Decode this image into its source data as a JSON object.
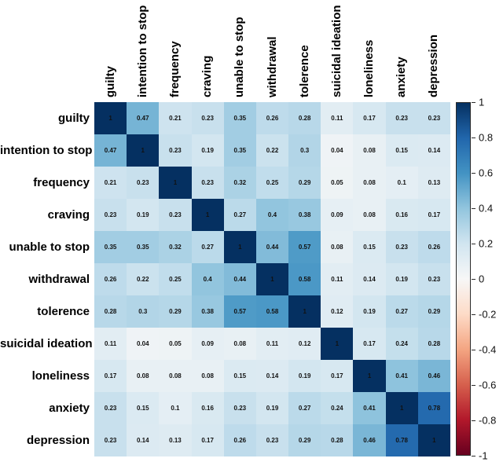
{
  "chart_data": {
    "type": "heatmap",
    "title": "",
    "description": "Correlation matrix heatmap with blue-white-red colorbar",
    "variables": [
      "guilty",
      "intention to stop",
      "frequency",
      "craving",
      "unable to stop",
      "withdrawal",
      "tolerence",
      "suicidal ideation",
      "loneliness",
      "anxiety",
      "depression"
    ],
    "matrix": [
      [
        1,
        0.47,
        0.21,
        0.23,
        0.35,
        0.26,
        0.28,
        0.11,
        0.17,
        0.23,
        0.23
      ],
      [
        0.47,
        1,
        0.23,
        0.19,
        0.35,
        0.22,
        0.3,
        0.04,
        0.08,
        0.15,
        0.14
      ],
      [
        0.21,
        0.23,
        1,
        0.23,
        0.32,
        0.25,
        0.29,
        0.05,
        0.08,
        0.1,
        0.13
      ],
      [
        0.23,
        0.19,
        0.23,
        1,
        0.27,
        0.4,
        0.38,
        0.09,
        0.08,
        0.16,
        0.17
      ],
      [
        0.35,
        0.35,
        0.32,
        0.27,
        1,
        0.44,
        0.57,
        0.08,
        0.15,
        0.23,
        0.26
      ],
      [
        0.26,
        0.22,
        0.25,
        0.4,
        0.44,
        1,
        0.58,
        0.11,
        0.14,
        0.19,
        0.23
      ],
      [
        0.28,
        0.3,
        0.29,
        0.38,
        0.57,
        0.58,
        1,
        0.12,
        0.19,
        0.27,
        0.29
      ],
      [
        0.11,
        0.04,
        0.05,
        0.09,
        0.08,
        0.11,
        0.12,
        1,
        0.17,
        0.24,
        0.28
      ],
      [
        0.17,
        0.08,
        0.08,
        0.08,
        0.15,
        0.14,
        0.19,
        0.17,
        1,
        0.41,
        0.46
      ],
      [
        0.23,
        0.15,
        0.1,
        0.16,
        0.23,
        0.19,
        0.27,
        0.24,
        0.41,
        1,
        0.78
      ],
      [
        0.23,
        0.14,
        0.13,
        0.17,
        0.26,
        0.23,
        0.29,
        0.28,
        0.46,
        0.78,
        1
      ]
    ],
    "value_range": [
      -1,
      1
    ],
    "colormap": {
      "name": "RdBu",
      "stops": [
        "#67001f",
        "#b2182b",
        "#d6604d",
        "#f4a582",
        "#fddbc7",
        "#f7f7f7",
        "#d1e5f0",
        "#92c5de",
        "#4393c3",
        "#2166ac",
        "#053061"
      ]
    },
    "colorbar": {
      "position": "right",
      "tick_values": [
        1,
        0.8,
        0.6,
        0.4,
        0.2,
        0,
        -0.2,
        -0.4,
        -0.6,
        -0.8,
        -1
      ],
      "tick_labels": [
        "1",
        "0.8",
        "0.6",
        "0.4",
        "0.2",
        "0",
        "-0.2",
        "-0.4",
        "-0.6",
        "-0.8",
        "-1"
      ]
    },
    "grid": false,
    "cell_text_color": "#111111"
  }
}
